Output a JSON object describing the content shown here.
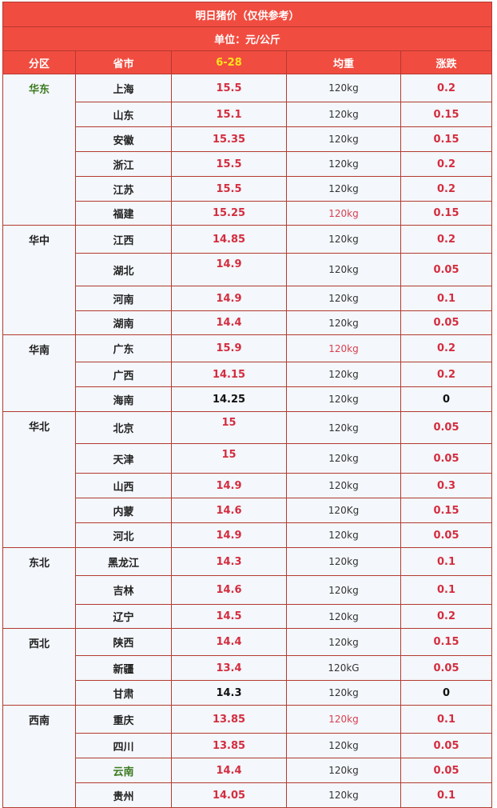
{
  "title": "明日猪价（仅供参考）",
  "unit": "单位：元/公斤",
  "columns": {
    "region": "分区",
    "province": "省市",
    "date": "6-28",
    "weight": "均重",
    "change": "涨跌"
  },
  "groups": [
    {
      "region": "华东",
      "rows": [
        {
          "province": "上海",
          "price": "15.5",
          "weight": "120kg",
          "change": "0.2"
        },
        {
          "province": "山东",
          "price": "15.1",
          "weight": "120kg",
          "change": "0.15"
        },
        {
          "province": "安徽",
          "price": "15.35",
          "weight": "120kg",
          "change": "0.15"
        },
        {
          "province": "浙江",
          "price": "15.5",
          "weight": "120kg",
          "change": "0.2"
        },
        {
          "province": "江苏",
          "price": "15.5",
          "weight": "120kg",
          "change": "0.2"
        },
        {
          "province": "福建",
          "price": "15.25",
          "weight": "120kg",
          "change": "0.15"
        }
      ]
    },
    {
      "region": "华中",
      "rows": [
        {
          "province": "江西",
          "price": "14.85",
          "weight": "120kg",
          "change": "0.2"
        },
        {
          "province": "湖北",
          "price": "14.9",
          "weight": "120kg",
          "change": "0.05"
        },
        {
          "province": "河南",
          "price": "14.9",
          "weight": "120kg",
          "change": "0.1"
        },
        {
          "province": "湖南",
          "price": "14.4",
          "weight": "120kg",
          "change": "0.05"
        }
      ]
    },
    {
      "region": "华南",
      "rows": [
        {
          "province": "广东",
          "price": "15.9",
          "weight": "120kg",
          "change": "0.2"
        },
        {
          "province": "广西",
          "price": "14.15",
          "weight": "120kg",
          "change": "0.2"
        },
        {
          "province": "海南",
          "price": "14.25",
          "weight": "120kg",
          "change": "0"
        }
      ]
    },
    {
      "region": "华北",
      "rows": [
        {
          "province": "北京",
          "price": "15",
          "weight": "120kg",
          "change": "0.05"
        },
        {
          "province": "天津",
          "price": "15",
          "weight": "120kg",
          "change": "0.05"
        },
        {
          "province": "山西",
          "price": "14.9",
          "weight": "120kg",
          "change": "0.3"
        },
        {
          "province": "内蒙",
          "price": "14.6",
          "weight": "120Kg",
          "change": "0.15"
        },
        {
          "province": "河北",
          "price": "14.9",
          "weight": "120kg",
          "change": "0.05"
        }
      ]
    },
    {
      "region": "东北",
      "rows": [
        {
          "province": "黑龙江",
          "price": "14.3",
          "weight": "120kg",
          "change": "0.1"
        },
        {
          "province": "吉林",
          "price": "14.6",
          "weight": "120kg",
          "change": "0.1"
        },
        {
          "province": "辽宁",
          "price": "14.5",
          "weight": "120kg",
          "change": "0.2"
        }
      ]
    },
    {
      "region": "西北",
      "rows": [
        {
          "province": "陕西",
          "price": "14.4",
          "weight": "120kg",
          "change": "0.15"
        },
        {
          "province": "新疆",
          "price": "13.4",
          "weight": "120kG",
          "change": "0.05"
        },
        {
          "province": "甘肃",
          "price": "14.3",
          "weight": "120kg",
          "change": "0"
        }
      ]
    },
    {
      "region": "西南",
      "rows": [
        {
          "province": "重庆",
          "price": "13.85",
          "weight": "120kg",
          "change": "0.1"
        },
        {
          "province": "四川",
          "price": "13.85",
          "weight": "120kg",
          "change": "0.05"
        },
        {
          "province": "云南",
          "price": "14.4",
          "weight": "120kg",
          "change": "0.05"
        },
        {
          "province": "贵州",
          "price": "14.05",
          "weight": "120kg",
          "change": "0.1"
        }
      ]
    }
  ],
  "colors": {
    "header_bg": "#f14c40",
    "date_highlight": "#ffe31a",
    "price_red": "#d42d3f",
    "region_green": "#3a7a1e",
    "cell_bg": "#f4f7fb",
    "border": "#b43a32"
  }
}
